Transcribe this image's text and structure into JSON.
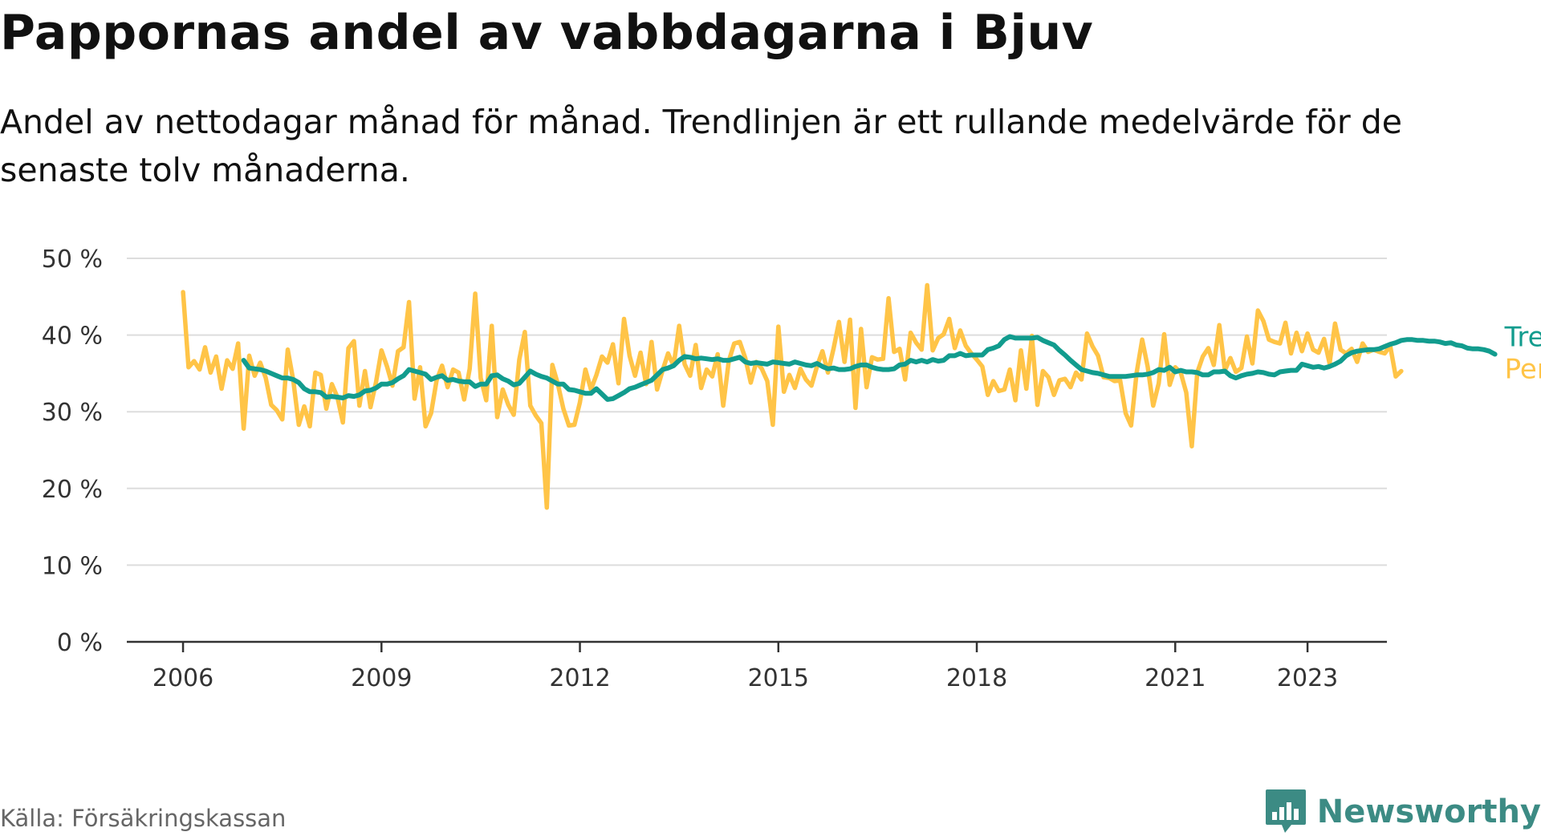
{
  "title": "Pappornas andel av vabbdagarna i Bjuv",
  "subtitle": "Andel av nettodagar månad för månad. Trendlinjen är ett rullande medelvärde för de senaste tolv månaderna.",
  "source": "Källa: Försäkringskassan",
  "brand": {
    "name": "Newsworthy",
    "icon": "bar-chart-speech-bubble-icon"
  },
  "colors": {
    "monthly": "#FFC447",
    "trend": "#129C8E",
    "grid": "#dddddd",
    "axis": "#333333",
    "brand": "#3c8b84"
  },
  "chart_data": {
    "type": "line",
    "title": "Pappornas andel av vabbdagarna i Bjuv",
    "xlabel": "",
    "ylabel": "",
    "ylim": [
      0,
      50
    ],
    "xlim": [
      2005.15,
      2024.2
    ],
    "grid": true,
    "x_ticks": [
      2006,
      2009,
      2012,
      2015,
      2018,
      2021,
      2023
    ],
    "x_tick_labels": [
      "2006",
      "2009",
      "2012",
      "2015",
      "2018",
      "2021",
      "2023"
    ],
    "y_ticks": [
      0,
      10,
      20,
      30,
      40,
      50
    ],
    "y_tick_labels": [
      "0 %",
      "10 %",
      "20 %",
      "30 %",
      "40 %",
      "50 %"
    ],
    "legend": "end-of-line labels",
    "series": [
      {
        "name": "Per månad",
        "start": "2006-01",
        "values": [
          45.6,
          35.8,
          36.6,
          35.5,
          38.4,
          35.1,
          37.2,
          33.0,
          36.7,
          35.6,
          38.9,
          27.8,
          37.3,
          34.7,
          36.4,
          34.4,
          30.9,
          30.2,
          29.0,
          38.1,
          34.1,
          28.3,
          30.7,
          28.1,
          35.1,
          34.8,
          30.4,
          33.6,
          31.9,
          28.6,
          38.3,
          39.2,
          30.8,
          35.3,
          30.6,
          33.8,
          38.0,
          35.9,
          33.4,
          37.9,
          38.4,
          44.3,
          31.7,
          35.8,
          28.1,
          29.8,
          34.1,
          36.0,
          33.2,
          35.5,
          35.1,
          31.6,
          35.6,
          45.4,
          34.4,
          31.5,
          41.2,
          29.3,
          32.9,
          30.9,
          29.6,
          36.8,
          40.4,
          30.8,
          29.5,
          28.5,
          17.5,
          36.1,
          33.6,
          30.4,
          28.2,
          28.3,
          31.2,
          35.5,
          32.9,
          34.8,
          37.2,
          36.4,
          38.8,
          33.7,
          42.1,
          37.3,
          34.7,
          37.7,
          33.6,
          39.1,
          32.9,
          35.4,
          37.6,
          36.0,
          41.2,
          36.2,
          34.7,
          38.7,
          33.1,
          35.5,
          34.6,
          37.5,
          30.8,
          36.6,
          38.9,
          39.1,
          37.0,
          33.8,
          36.5,
          35.6,
          34.0,
          28.3,
          41.1,
          32.6,
          34.8,
          33.1,
          35.6,
          34.2,
          33.4,
          35.9,
          37.9,
          35.1,
          38.2,
          41.7,
          36.5,
          42.0,
          30.5,
          40.8,
          33.2,
          37.1,
          36.8,
          36.9,
          44.8,
          37.8,
          38.2,
          34.2,
          40.3,
          39.0,
          38.1,
          46.5,
          38.0,
          39.6,
          40.1,
          42.1,
          38.3,
          40.6,
          38.6,
          37.6,
          36.8,
          35.9,
          32.2,
          34.0,
          32.7,
          32.9,
          35.5,
          31.5,
          38.0,
          33.0,
          39.9,
          30.9,
          35.3,
          34.5,
          32.2,
          34.1,
          34.3,
          33.2,
          35.1,
          34.2,
          40.2,
          38.5,
          37.3,
          34.5,
          34.4,
          34.0,
          34.1,
          29.8,
          28.2,
          35.1,
          39.4,
          35.9,
          30.8,
          33.7,
          40.1,
          33.5,
          35.8,
          35.1,
          32.5,
          25.5,
          35.1,
          37.2,
          38.3,
          36.1,
          41.3,
          35.4,
          37.0,
          35.2,
          35.7,
          39.8,
          36.3,
          43.2,
          41.8,
          39.4,
          39.1,
          38.9,
          41.6,
          37.6,
          40.3,
          37.9,
          40.2,
          38.1,
          37.7,
          39.5,
          36.3,
          41.5,
          38.1,
          37.6,
          38.2,
          36.5,
          38.9,
          37.8,
          38.1,
          37.8,
          37.6,
          38.6,
          34.6,
          35.3
        ]
      },
      {
        "name": "Trend",
        "start": "2006-12",
        "values": [
          36.7,
          35.7,
          35.6,
          35.5,
          35.3,
          35.0,
          34.7,
          34.4,
          34.4,
          34.2,
          33.8,
          33.0,
          32.6,
          32.6,
          32.5,
          31.9,
          32.0,
          31.9,
          31.8,
          32.1,
          32.0,
          32.2,
          32.7,
          32.8,
          33.1,
          33.6,
          33.6,
          33.8,
          34.3,
          34.7,
          35.5,
          35.3,
          35.1,
          34.9,
          34.2,
          34.5,
          34.7,
          34.1,
          34.2,
          34.0,
          33.9,
          33.9,
          33.3,
          33.6,
          33.6,
          34.7,
          34.8,
          34.3,
          34.0,
          33.5,
          33.7,
          34.5,
          35.3,
          34.9,
          34.6,
          34.4,
          34.0,
          33.6,
          33.6,
          32.9,
          32.8,
          32.6,
          32.4,
          32.4,
          33.0,
          32.3,
          31.6,
          31.7,
          32.1,
          32.5,
          33.0,
          33.2,
          33.5,
          33.8,
          34.1,
          34.8,
          35.5,
          35.7,
          36.0,
          36.7,
          37.2,
          37.1,
          36.9,
          37.0,
          36.9,
          36.8,
          36.9,
          36.7,
          36.7,
          36.9,
          37.1,
          36.5,
          36.3,
          36.4,
          36.3,
          36.2,
          36.5,
          36.4,
          36.3,
          36.2,
          36.5,
          36.3,
          36.1,
          36.0,
          36.3,
          35.9,
          35.6,
          35.7,
          35.5,
          35.5,
          35.6,
          35.9,
          36.1,
          36.1,
          35.8,
          35.6,
          35.5,
          35.5,
          35.6,
          36.1,
          36.2,
          36.7,
          36.5,
          36.7,
          36.5,
          36.8,
          36.6,
          36.7,
          37.3,
          37.3,
          37.6,
          37.3,
          37.4,
          37.4,
          37.4,
          38.1,
          38.3,
          38.6,
          39.4,
          39.8,
          39.6,
          39.6,
          39.6,
          39.6,
          39.7,
          39.3,
          39.0,
          38.7,
          38.0,
          37.4,
          36.7,
          36.1,
          35.5,
          35.3,
          35.1,
          35.0,
          34.8,
          34.6,
          34.6,
          34.6,
          34.6,
          34.7,
          34.8,
          34.8,
          34.9,
          35.1,
          35.5,
          35.4,
          35.8,
          35.2,
          35.4,
          35.2,
          35.2,
          35.1,
          34.8,
          34.8,
          35.2,
          35.2,
          35.3,
          34.7,
          34.4,
          34.7,
          34.9,
          35.0,
          35.2,
          35.1,
          34.9,
          34.8,
          35.2,
          35.3,
          35.4,
          35.4,
          36.2,
          36.0,
          35.8,
          35.9,
          35.7,
          35.9,
          36.2,
          36.6,
          37.3,
          37.7,
          37.9,
          38.0,
          38.1,
          38.1,
          38.2,
          38.5,
          38.8,
          39.0,
          39.3,
          39.4,
          39.4,
          39.3,
          39.3,
          39.2,
          39.2,
          39.1,
          38.9,
          39.0,
          38.7,
          38.6,
          38.3,
          38.2,
          38.2,
          38.1,
          37.9,
          37.5
        ]
      }
    ]
  }
}
